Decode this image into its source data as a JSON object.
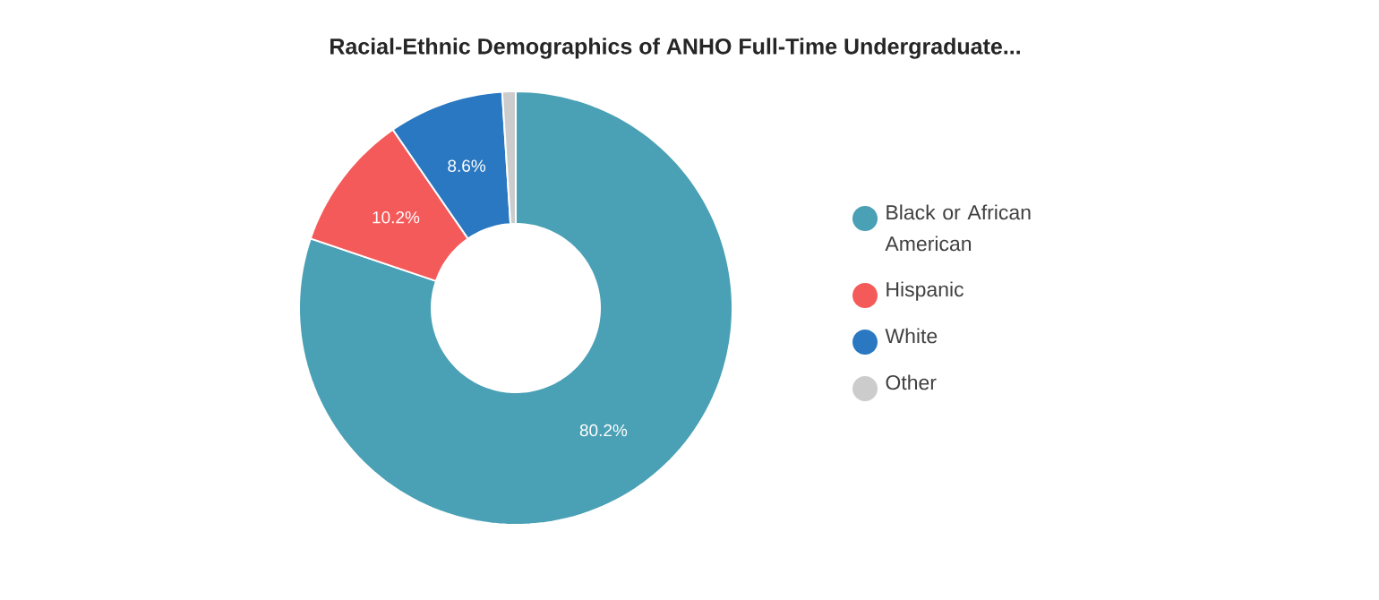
{
  "chart_data": {
    "type": "donut",
    "title": "Racial-Ethnic Demographics of ANHO Full-Time Undergraduate...",
    "categories": [
      "Black or African American",
      "Hispanic",
      "White",
      "Other"
    ],
    "values": [
      80.2,
      10.2,
      8.6,
      1.0
    ],
    "colors": [
      "#4aa0b5",
      "#f55a5a",
      "#2a78c2",
      "#cccccc"
    ],
    "value_labels": [
      "80.2%",
      "10.2%",
      "8.6%",
      null
    ],
    "legend": "right"
  }
}
